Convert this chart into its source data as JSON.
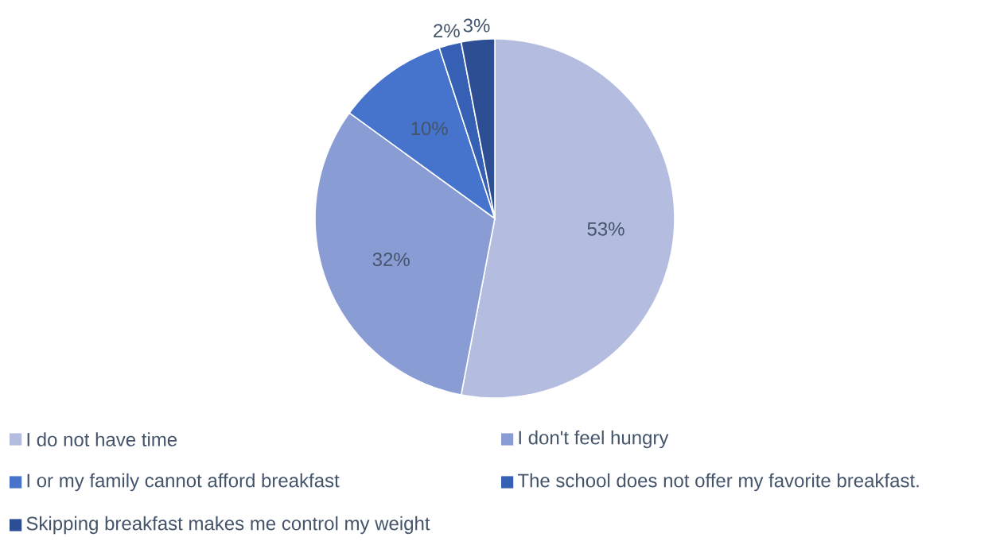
{
  "chart_data": {
    "type": "pie",
    "categories": [
      "I do not have time",
      "I don't feel hungry",
      "I or my family cannot afford breakfast",
      "The school does not offer my favorite breakfast.",
      "Skipping breakfast makes me control my weight"
    ],
    "values": [
      53,
      32,
      10,
      2,
      3
    ],
    "value_labels": [
      "53%",
      "32%",
      "10%",
      "2%",
      "3%"
    ],
    "colors": [
      "#b4bde0",
      "#8a9cd4",
      "#4674cc",
      "#3560b4",
      "#2e4e94"
    ],
    "legend": "bottom"
  }
}
